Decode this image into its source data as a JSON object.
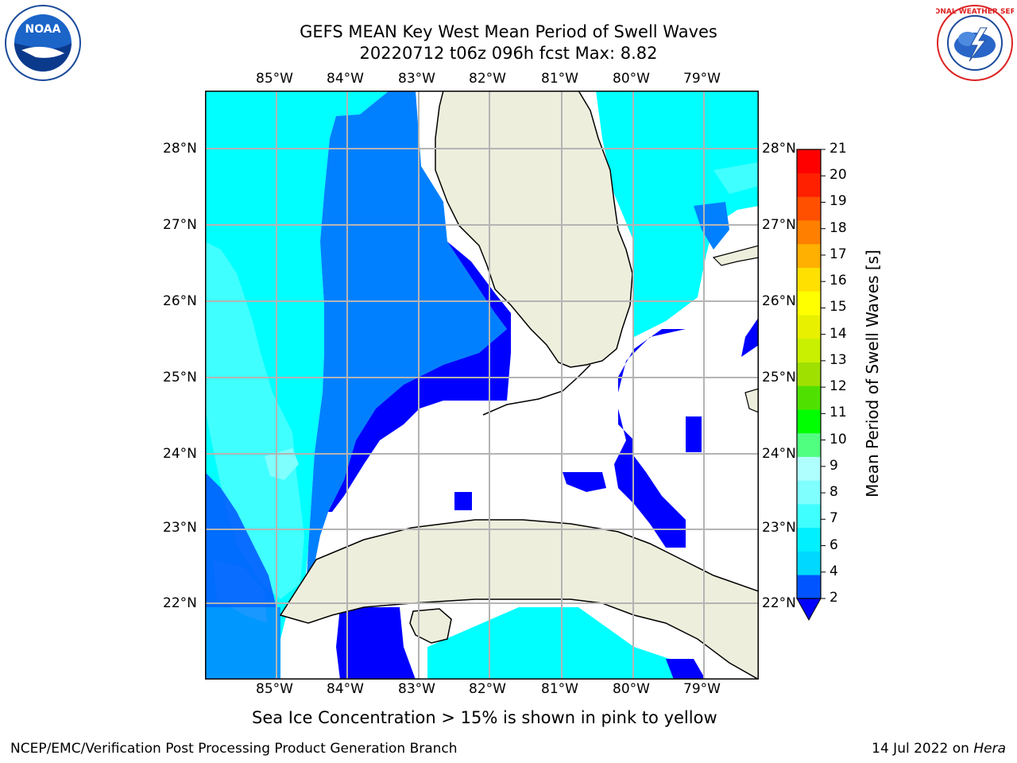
{
  "title": {
    "line1": "GEFS MEAN Key West Mean Period of Swell Waves",
    "line2": "20220712 t06z 096h fcst   Max: 8.82"
  },
  "map": {
    "lon_labels": [
      "85°W",
      "84°W",
      "83°W",
      "82°W",
      "81°W",
      "80°W",
      "79°W"
    ],
    "lat_labels": [
      "28°N",
      "27°N",
      "26°N",
      "25°N",
      "24°N",
      "23°N",
      "22°N"
    ]
  },
  "colorbar": {
    "label": "Mean Period of Swell Waves [s]",
    "ticks": [
      "2",
      "4",
      "6",
      "7",
      "8",
      "9",
      "10",
      "11",
      "12",
      "13",
      "14",
      "15",
      "16",
      "17",
      "18",
      "19",
      "20",
      "21"
    ],
    "colors": [
      "#0054ff",
      "#00d8ff",
      "#00f0ff",
      "#40ffff",
      "#80ffff",
      "#b0ffff",
      "#50ff80",
      "#00ff00",
      "#50e000",
      "#a0e000",
      "#c8f000",
      "#e8f000",
      "#ffff00",
      "#ffe000",
      "#ffb000",
      "#ff8000",
      "#ff5000",
      "#ff2000",
      "#ff0000"
    ]
  },
  "caption": "Sea Ice Concentration > 15% is shown in pink to yellow",
  "footer": {
    "left": "NCEP/EMC/Verification Post Processing Product Generation Branch",
    "right_date": "14 Jul 2022 on ",
    "right_host": "Hera"
  },
  "logos": {
    "noaa": "NOAA",
    "nws": "NATIONAL WEATHER SERVICE"
  }
}
